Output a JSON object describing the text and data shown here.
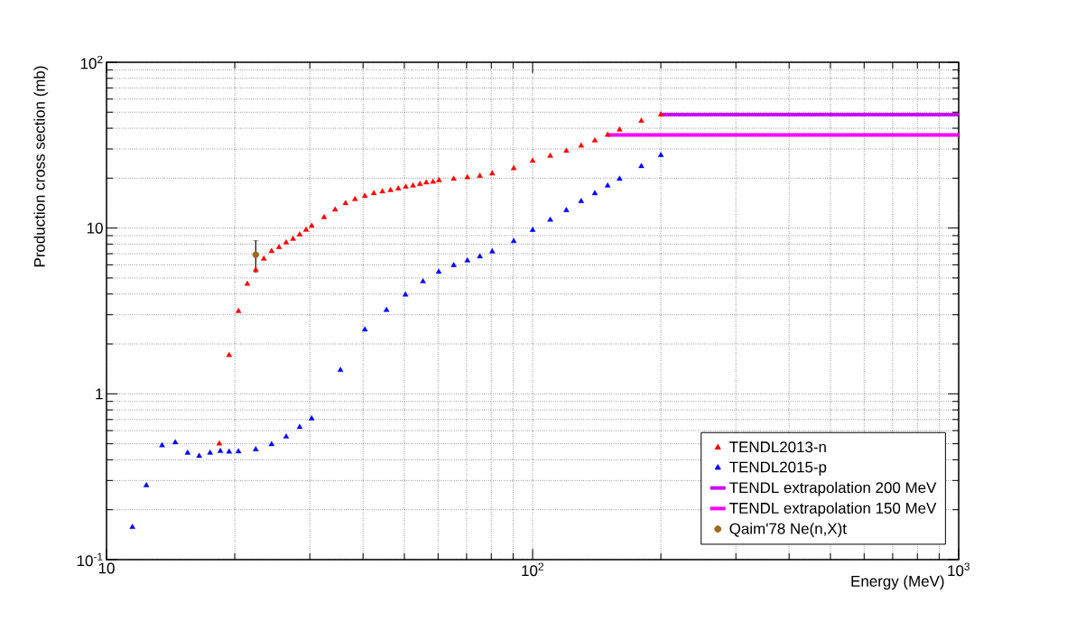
{
  "chart_data": {
    "type": "scatter",
    "xlabel": "Energy (MeV)",
    "ylabel": "Production cross section (mb)",
    "log": "xy",
    "grid": true,
    "legend": "bottom right",
    "xlim": [
      10,
      1000
    ],
    "ylim": [
      0.1,
      100
    ],
    "xticks": [
      10,
      {
        "value": 100,
        "label": "10$^{2}$"
      },
      {
        "value": 1000,
        "label": "10$^{3}$"
      }
    ],
    "yticks": [
      {
        "value": 0.1,
        "label": "10$^{-1}$"
      },
      1,
      10,
      {
        "value": 100,
        "label": "10$^{2}$"
      }
    ],
    "series": [
      {
        "name": "TENDL2013-n",
        "marker": "triangle",
        "color": "#ff0000",
        "x": [
          18.4,
          19.4,
          20.4,
          21.4,
          22.4,
          23.4,
          24.4,
          25.4,
          26.4,
          27.4,
          28.4,
          29.4,
          30.3,
          32.4,
          34.4,
          36.4,
          38.3,
          40.4,
          42.4,
          44.4,
          46.4,
          48.4,
          50.4,
          52.4,
          54.4,
          56.3,
          58.4,
          60.3,
          65.3,
          70.3,
          75.2,
          80.4,
          90.3,
          100,
          110,
          120,
          130,
          140,
          150,
          160,
          180,
          200
        ],
        "values": [
          0.5,
          1.71,
          3.15,
          4.6,
          5.6,
          6.53,
          7.25,
          7.66,
          8.18,
          8.6,
          9.13,
          9.75,
          10.3,
          11.6,
          12.9,
          14.1,
          14.9,
          15.6,
          16.2,
          16.6,
          16.9,
          17.3,
          17.7,
          18.0,
          18.4,
          18.8,
          19.0,
          19.4,
          19.8,
          20.2,
          20.6,
          21.3,
          22.9,
          25.4,
          27.2,
          29.2,
          31.4,
          33.7,
          36.5,
          39.2,
          44.3,
          48.3
        ]
      },
      {
        "name": "TENDL2015-p",
        "marker": "triangle",
        "color": "#0000ff",
        "x": [
          11.5,
          12.4,
          13.5,
          14.5,
          15.5,
          16.5,
          17.5,
          18.5,
          19.4,
          20.4,
          22.4,
          24.4,
          26.4,
          28.4,
          30.3,
          35.4,
          40.4,
          45.4,
          50.3,
          55.3,
          60.2,
          65.3,
          70.3,
          75.2,
          80.4,
          90.3,
          100,
          110,
          120,
          130,
          140,
          150,
          160,
          180,
          200
        ],
        "values": [
          0.157,
          0.28,
          0.488,
          0.509,
          0.44,
          0.422,
          0.44,
          0.451,
          0.447,
          0.449,
          0.462,
          0.496,
          0.551,
          0.63,
          0.71,
          1.39,
          2.44,
          3.2,
          3.96,
          4.76,
          5.44,
          5.96,
          6.37,
          6.73,
          7.22,
          8.33,
          9.72,
          11.2,
          12.8,
          14.5,
          16.2,
          18.0,
          19.8,
          23.6,
          27.5
        ]
      },
      {
        "name": "TENDL extrapolation 200 MeV",
        "type": "line",
        "color": "#cc00ff",
        "x": [
          200,
          1000
        ],
        "values": [
          48.3,
          48.3
        ]
      },
      {
        "name": "TENDL extrapolation 150 MeV",
        "type": "line",
        "color": "#ff00ff",
        "x": [
          150,
          1000
        ],
        "values": [
          36.5,
          36.5
        ]
      },
      {
        "name": "Qaim'78 Ne(n,X)t",
        "marker": "circle",
        "color": "#9c6a1c",
        "x": [
          22.4
        ],
        "values": [
          6.9
        ],
        "errors": [
          1.5
        ]
      }
    ]
  }
}
